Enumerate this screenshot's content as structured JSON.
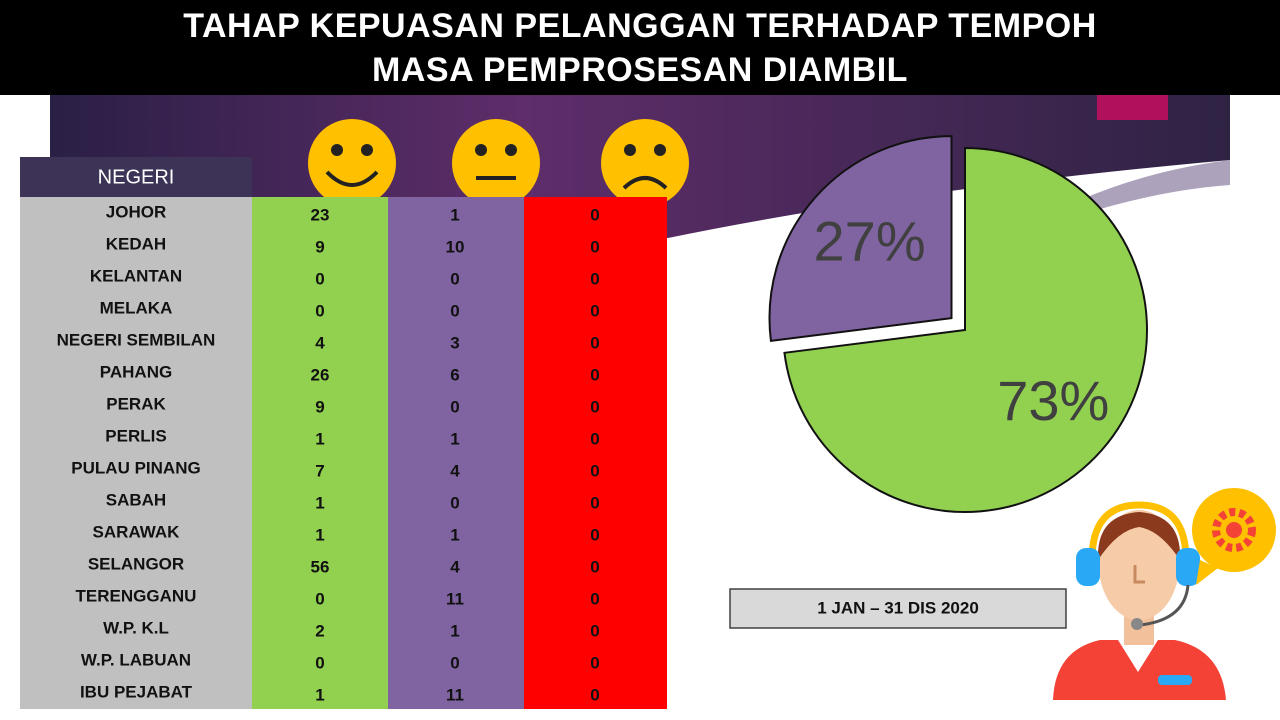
{
  "header": {
    "title": "TAHAP KEPUASAN PELANGGAN TERHADAP TEMPOH MASA PEMPROSESAN DIAMBIL"
  },
  "table": {
    "header": "NEGERI",
    "rows": [
      [
        "JOHOR",
        23,
        1,
        0
      ],
      [
        "KEDAH",
        9,
        10,
        0
      ],
      [
        "KELANTAN",
        0,
        0,
        0
      ],
      [
        "MELAKA",
        0,
        0,
        0
      ],
      [
        "NEGERI SEMBILAN",
        4,
        3,
        0
      ],
      [
        "PAHANG",
        26,
        6,
        0
      ],
      [
        "PERAK",
        9,
        0,
        0
      ],
      [
        "PERLIS",
        1,
        1,
        0
      ],
      [
        "PULAU PINANG",
        7,
        4,
        0
      ],
      [
        "SABAH",
        1,
        0,
        0
      ],
      [
        "SARAWAK",
        1,
        1,
        0
      ],
      [
        "SELANGOR",
        56,
        4,
        0
      ],
      [
        "TERENGGANU",
        0,
        11,
        0
      ],
      [
        "W.P. K.L",
        2,
        1,
        0
      ],
      [
        "W.P. LABUAN",
        0,
        0,
        0
      ],
      [
        "IBU PEJABAT",
        1,
        11,
        0
      ]
    ],
    "column_colors": [
      "#c0c0c0",
      "#92d050",
      "#8064a2",
      "#ff0000"
    ]
  },
  "chart_data": {
    "type": "pie",
    "values": [
      73,
      27
    ],
    "value_labels": [
      "73%",
      "27%"
    ],
    "colors": [
      "#92d050",
      "#8064a2"
    ]
  },
  "date_range": "1 JAN – 31 DIS 2020"
}
